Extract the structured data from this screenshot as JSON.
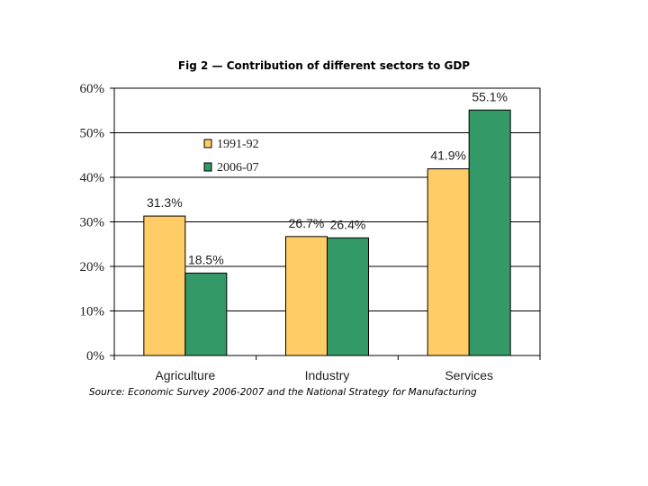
{
  "chart_data": {
    "type": "bar",
    "title": "Fig 2 — Contribution of different sectors to GDP",
    "categories": [
      "Agriculture",
      "Industry",
      "Services"
    ],
    "series": [
      {
        "name": "1991-92",
        "values": [
          31.3,
          26.7,
          41.9
        ],
        "labels": [
          "31.3%",
          "26.7%",
          "41.9%"
        ],
        "color": "#FFCC66"
      },
      {
        "name": "2006-07",
        "values": [
          18.5,
          26.4,
          55.1
        ],
        "labels": [
          "18.5%",
          "26.4%",
          "55.1%"
        ],
        "color": "#339966"
      }
    ],
    "ylim": [
      0,
      60
    ],
    "yticks": [
      "0%",
      "10%",
      "20%",
      "30%",
      "40%",
      "50%",
      "60%"
    ],
    "xlabel": "",
    "ylabel": "",
    "grid": true,
    "legend_position": "upper-left-center",
    "source": "Source: Economic Survey 2006-2007 and the National Strategy for Manufacturing"
  }
}
